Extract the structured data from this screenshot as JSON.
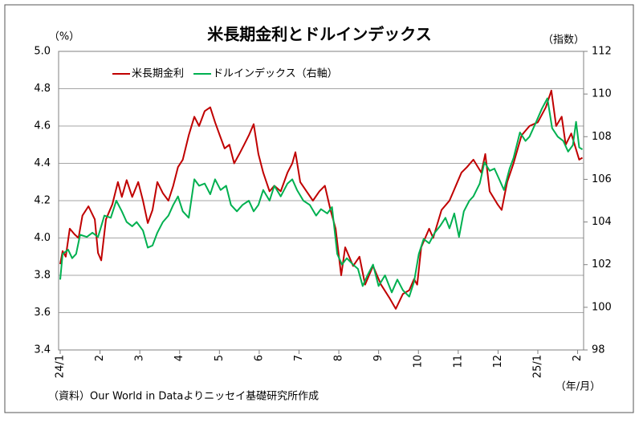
{
  "chart_data": {
    "type": "line",
    "title": "米長期金利とドルインデックス",
    "y_label": "（%）",
    "y2_label": "（指数）",
    "x_label": "（年/月）",
    "source": "（資料）Our World in Dataよりニッセイ基礎研究所作成",
    "xlim": [
      -0.04,
      13.15
    ],
    "xticks": [
      {
        "value": 0,
        "label": "24/1"
      },
      {
        "value": 1,
        "label": "2"
      },
      {
        "value": 2,
        "label": "3"
      },
      {
        "value": 3,
        "label": "4"
      },
      {
        "value": 4,
        "label": "5"
      },
      {
        "value": 5,
        "label": "6"
      },
      {
        "value": 6,
        "label": "7"
      },
      {
        "value": 7,
        "label": "8"
      },
      {
        "value": 8,
        "label": "9"
      },
      {
        "value": 9,
        "label": "10"
      },
      {
        "value": 10,
        "label": "11"
      },
      {
        "value": 11,
        "label": "12"
      },
      {
        "value": 12,
        "label": "25/1"
      },
      {
        "value": 13,
        "label": "2"
      }
    ],
    "ylim": [
      3.4,
      5.0
    ],
    "yticks": [
      3.4,
      3.6,
      3.8,
      {
        "value": 4.0,
        "label": "4.0"
      },
      4.2,
      4.4,
      4.6,
      4.8,
      {
        "value": 5.0,
        "label": "5.0"
      }
    ],
    "y2lim": [
      98,
      112
    ],
    "y2ticks": [
      98,
      100,
      102,
      104,
      106,
      108,
      110,
      112
    ],
    "grid": true,
    "legend": "top-left",
    "series": [
      {
        "name": "米長期金利",
        "color": "#c00000",
        "x": [
          0,
          0.06,
          0.14,
          0.24,
          0.36,
          0.46,
          0.56,
          0.71,
          0.87,
          0.95,
          1.03,
          1.15,
          1.31,
          1.45,
          1.55,
          1.67,
          1.81,
          1.96,
          2.08,
          2.2,
          2.32,
          2.44,
          2.58,
          2.72,
          2.84,
          2.96,
          3.08,
          3.23,
          3.37,
          3.49,
          3.63,
          3.77,
          3.89,
          4.01,
          4.13,
          4.25,
          4.37,
          4.5,
          4.62,
          4.74,
          4.86,
          4.98,
          5.1,
          5.26,
          5.38,
          5.54,
          5.71,
          5.83,
          5.91,
          6.03,
          6.19,
          6.35,
          6.51,
          6.65,
          6.79,
          6.92,
          7.06,
          7.16,
          7.36,
          7.52,
          7.66,
          7.86,
          8.06,
          8.27,
          8.43,
          8.61,
          8.77,
          8.89,
          8.97,
          9.07,
          9.27,
          9.37,
          9.58,
          9.78,
          9.88,
          9.98,
          10.08,
          10.22,
          10.38,
          10.58,
          10.68,
          10.79,
          10.99,
          11.09,
          11.23,
          11.39,
          11.59,
          11.79,
          12.0,
          12.2,
          12.34,
          12.46,
          12.6,
          12.7,
          12.84,
          13.04,
          13.12
        ],
        "values": [
          3.86,
          3.93,
          3.9,
          4.05,
          4.02,
          4.0,
          4.12,
          4.17,
          4.1,
          3.92,
          3.88,
          4.1,
          4.18,
          4.3,
          4.22,
          4.31,
          4.22,
          4.3,
          4.2,
          4.08,
          4.15,
          4.3,
          4.24,
          4.2,
          4.28,
          4.38,
          4.42,
          4.55,
          4.65,
          4.6,
          4.68,
          4.7,
          4.62,
          4.55,
          4.48,
          4.5,
          4.4,
          4.45,
          4.5,
          4.55,
          4.61,
          4.45,
          4.35,
          4.25,
          4.28,
          4.25,
          4.35,
          4.4,
          4.46,
          4.3,
          4.25,
          4.2,
          4.25,
          4.28,
          4.15,
          4.05,
          3.8,
          3.95,
          3.85,
          3.9,
          3.75,
          3.85,
          3.75,
          3.68,
          3.62,
          3.7,
          3.72,
          3.78,
          3.75,
          3.95,
          4.05,
          4.0,
          4.15,
          4.2,
          4.25,
          4.3,
          4.35,
          4.38,
          4.42,
          4.35,
          4.45,
          4.25,
          4.18,
          4.15,
          4.3,
          4.4,
          4.55,
          4.6,
          4.62,
          4.7,
          4.79,
          4.6,
          4.65,
          4.5,
          4.56,
          4.42,
          4.43
        ]
      },
      {
        "name": "ドルインデックス（右軸）",
        "color": "#00b050",
        "axis": "y2",
        "x": [
          0,
          0.06,
          0.2,
          0.3,
          0.4,
          0.5,
          0.67,
          0.81,
          0.95,
          1.03,
          1.11,
          1.27,
          1.41,
          1.55,
          1.67,
          1.81,
          1.92,
          2.08,
          2.2,
          2.32,
          2.44,
          2.58,
          2.72,
          2.84,
          2.96,
          3.08,
          3.23,
          3.37,
          3.49,
          3.63,
          3.77,
          3.89,
          4.03,
          4.17,
          4.29,
          4.44,
          4.58,
          4.74,
          4.86,
          4.98,
          5.1,
          5.26,
          5.38,
          5.54,
          5.71,
          5.83,
          5.95,
          6.11,
          6.27,
          6.43,
          6.55,
          6.71,
          6.83,
          6.96,
          7.08,
          7.2,
          7.36,
          7.48,
          7.6,
          7.72,
          7.86,
          8.0,
          8.16,
          8.33,
          8.47,
          8.61,
          8.77,
          8.89,
          9.01,
          9.13,
          9.27,
          9.41,
          9.54,
          9.68,
          9.78,
          9.9,
          10.02,
          10.14,
          10.28,
          10.38,
          10.54,
          10.66,
          10.79,
          10.91,
          11.03,
          11.15,
          11.29,
          11.39,
          11.55,
          11.69,
          11.79,
          11.96,
          12.1,
          12.24,
          12.36,
          12.5,
          12.64,
          12.76,
          12.88,
          12.96,
          13.04,
          13.12
        ],
        "values": [
          101.3,
          102.5,
          102.7,
          102.3,
          102.5,
          103.4,
          103.3,
          103.5,
          103.3,
          103.8,
          104.3,
          104.2,
          105.0,
          104.5,
          104.0,
          103.8,
          104.0,
          103.6,
          102.8,
          102.9,
          103.5,
          104.0,
          104.3,
          104.8,
          105.2,
          104.5,
          104.2,
          106.0,
          105.7,
          105.8,
          105.3,
          106.0,
          105.5,
          105.7,
          104.8,
          104.5,
          104.8,
          105.0,
          104.5,
          104.8,
          105.5,
          105.0,
          105.7,
          105.2,
          105.8,
          106.0,
          105.5,
          105.0,
          104.8,
          104.3,
          104.6,
          104.4,
          104.7,
          102.5,
          102.0,
          102.3,
          102.0,
          101.8,
          101.0,
          101.5,
          102.0,
          101.0,
          101.5,
          100.7,
          101.3,
          100.8,
          100.5,
          101.2,
          102.5,
          103.2,
          103.0,
          103.5,
          103.8,
          104.2,
          103.7,
          104.4,
          103.3,
          104.5,
          105.0,
          105.2,
          105.8,
          106.8,
          106.4,
          106.5,
          106.0,
          105.5,
          106.5,
          107.0,
          108.2,
          107.8,
          108.0,
          108.7,
          109.3,
          109.8,
          108.4,
          108.0,
          107.8,
          107.3,
          107.6,
          108.7,
          107.5,
          107.4
        ]
      }
    ]
  }
}
